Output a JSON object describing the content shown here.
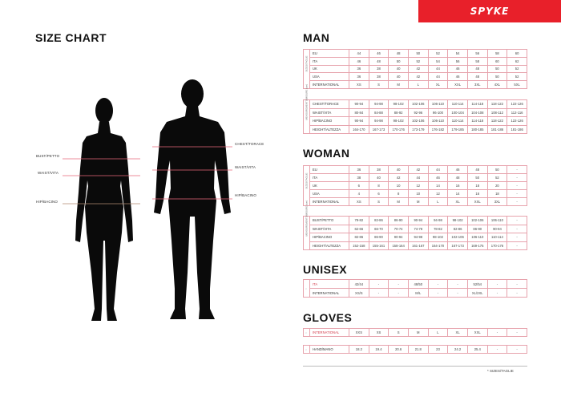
{
  "brand": {
    "logo_text": "SPYKE",
    "color": "#e8202a"
  },
  "left": {
    "title": "SIZE CHART",
    "woman_labels": [
      "BUST/PETTO",
      "WAIST/VITA",
      "HIP/BACINO"
    ],
    "man_labels": [
      "CHEST/TORACE",
      "WAIST/VITA",
      "HIP/BACINO"
    ]
  },
  "side_labels": {
    "sizes": "SIZES/TAGLIE",
    "measurements": "MEASUREMENTS/MISURE (cm)",
    "marker": "*"
  },
  "sections": {
    "man": {
      "title": "MAN",
      "sizes": [
        {
          "label": "EU",
          "values": [
            "44",
            "46",
            "48",
            "50",
            "52",
            "54",
            "56",
            "58",
            "60"
          ]
        },
        {
          "label": "ITA",
          "values": [
            "46",
            "48",
            "50",
            "52",
            "54",
            "56",
            "58",
            "60",
            "62"
          ]
        },
        {
          "label": "UK",
          "values": [
            "36",
            "38",
            "40",
            "42",
            "44",
            "46",
            "48",
            "50",
            "52"
          ]
        },
        {
          "label": "USA",
          "values": [
            "36",
            "38",
            "40",
            "42",
            "44",
            "46",
            "48",
            "50",
            "52"
          ]
        },
        {
          "label": "INTERNATIONAL",
          "values": [
            "XS",
            "S",
            "M",
            "L",
            "XL",
            "XXL",
            "3XL",
            "4XL",
            "5XL"
          ]
        }
      ],
      "measurements": [
        {
          "label": "CHEST/TORACE",
          "values": [
            "90-94",
            "94-98",
            "98-102",
            "102-106",
            "106-110",
            "110-114",
            "114-118",
            "118-122",
            "122-126"
          ]
        },
        {
          "label": "WAIST/VITA",
          "values": [
            "80-84",
            "84-88",
            "88-92",
            "92-96",
            "96-100",
            "100-104",
            "104-108",
            "108-112",
            "112-116"
          ]
        },
        {
          "label": "HIP/BACINO",
          "values": [
            "90-94",
            "94-98",
            "98-102",
            "102-106",
            "106-110",
            "110-114",
            "114-118",
            "118-122",
            "122-126"
          ]
        },
        {
          "label": "HEIGHT/ALTEZZA",
          "values": [
            "164-170",
            "167-173",
            "170-176",
            "173-179",
            "176-182",
            "179-185",
            "180-185",
            "181-186",
            "181-186"
          ]
        }
      ]
    },
    "woman": {
      "title": "WOMAN",
      "sizes": [
        {
          "label": "EU",
          "values": [
            "36",
            "38",
            "40",
            "42",
            "44",
            "46",
            "48",
            "50",
            "-"
          ]
        },
        {
          "label": "ITA",
          "values": [
            "38",
            "40",
            "42",
            "44",
            "46",
            "48",
            "50",
            "52",
            "-"
          ]
        },
        {
          "label": "UK",
          "values": [
            "6",
            "8",
            "10",
            "12",
            "14",
            "16",
            "18",
            "20",
            "-"
          ]
        },
        {
          "label": "USA",
          "values": [
            "4",
            "6",
            "8",
            "10",
            "12",
            "14",
            "16",
            "18",
            "-"
          ]
        },
        {
          "label": "INTERNATIONAL",
          "values": [
            "XS",
            "S",
            "M",
            "M",
            "L",
            "XL",
            "XXL",
            "3XL",
            "-"
          ]
        }
      ],
      "measurements": [
        {
          "label": "BUST/PETTO",
          "values": [
            "78-82",
            "82-86",
            "86-90",
            "90-94",
            "94-98",
            "98-102",
            "102-106",
            "106-110",
            "-"
          ]
        },
        {
          "label": "WAIST/VITA",
          "values": [
            "62-66",
            "66-70",
            "70-74",
            "74-78",
            "78-82",
            "82-86",
            "86-90",
            "90-94",
            "-"
          ]
        },
        {
          "label": "HIP/BACINO",
          "values": [
            "82-86",
            "86-90",
            "90-94",
            "94-98",
            "98-102",
            "102-106",
            "106-110",
            "110-114",
            "-"
          ]
        },
        {
          "label": "HEIGHT/ALTEZZA",
          "values": [
            "152-158",
            "155-161",
            "158-164",
            "161-167",
            "164-170",
            "167-173",
            "169-175",
            "170-176",
            "-"
          ]
        }
      ]
    },
    "unisex": {
      "title": "UNISEX",
      "rows": [
        {
          "label": "ITA",
          "values": [
            "42/44",
            "-",
            "-",
            "48/50",
            "-",
            "-",
            "52/54",
            "-",
            "-"
          ]
        },
        {
          "label": "INTERNATIONAL",
          "values": [
            "XS/S",
            "-",
            "-",
            "M/L",
            "-",
            "-",
            "XL/2XL",
            "-",
            "-"
          ]
        }
      ]
    },
    "gloves": {
      "title": "GLOVES",
      "international": {
        "label": "INTERNATIONAL",
        "values": [
          "XXS",
          "XS",
          "S",
          "M",
          "L",
          "XL",
          "XXL",
          "-",
          "-"
        ]
      },
      "hand": {
        "label": "HAND/MANO",
        "values": [
          "18.2",
          "19.4",
          "20.6",
          "21.8",
          "23",
          "24.2",
          "25.4",
          "-",
          "-"
        ]
      }
    }
  },
  "footnote": "* SIZES/TAGLIE",
  "colors": {
    "accent": "#e8202a",
    "table_border": "#e7a3ad",
    "measure_line": "#e8697a",
    "hip_line_woman": "#b08a70"
  }
}
